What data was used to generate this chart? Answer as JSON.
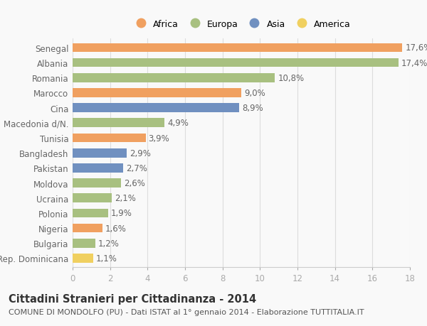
{
  "categories": [
    "Rep. Dominicana",
    "Bulgaria",
    "Nigeria",
    "Polonia",
    "Ucraina",
    "Moldova",
    "Pakistan",
    "Bangladesh",
    "Tunisia",
    "Macedonia d/N.",
    "Cina",
    "Marocco",
    "Romania",
    "Albania",
    "Senegal"
  ],
  "values": [
    1.1,
    1.2,
    1.6,
    1.9,
    2.1,
    2.6,
    2.7,
    2.9,
    3.9,
    4.9,
    8.9,
    9.0,
    10.8,
    17.4,
    17.6
  ],
  "labels": [
    "1,1%",
    "1,2%",
    "1,6%",
    "1,9%",
    "2,1%",
    "2,6%",
    "2,7%",
    "2,9%",
    "3,9%",
    "4,9%",
    "8,9%",
    "9,0%",
    "10,8%",
    "17,4%",
    "17,6%"
  ],
  "colors": [
    "#f0d060",
    "#a8c080",
    "#f0a060",
    "#a8c080",
    "#a8c080",
    "#a8c080",
    "#7090c0",
    "#7090c0",
    "#f0a060",
    "#a8c080",
    "#7090c0",
    "#f0a060",
    "#a8c080",
    "#a8c080",
    "#f0a060"
  ],
  "legend_labels": [
    "Africa",
    "Europa",
    "Asia",
    "America"
  ],
  "legend_colors": [
    "#f0a060",
    "#a8c080",
    "#7090c0",
    "#f0d060"
  ],
  "title1": "Cittadini Stranieri per Cittadinanza - 2014",
  "title2": "COMUNE DI MONDOLFO (PU) - Dati ISTAT al 1° gennaio 2014 - Elaborazione TUTTITALIA.IT",
  "xlim": [
    0,
    18
  ],
  "xticks": [
    0,
    2,
    4,
    6,
    8,
    10,
    12,
    14,
    16,
    18
  ],
  "background_color": "#f9f9f9",
  "bar_height": 0.6,
  "label_fontsize": 8.5,
  "tick_fontsize": 8.5,
  "title1_fontsize": 10.5,
  "title2_fontsize": 8.0
}
